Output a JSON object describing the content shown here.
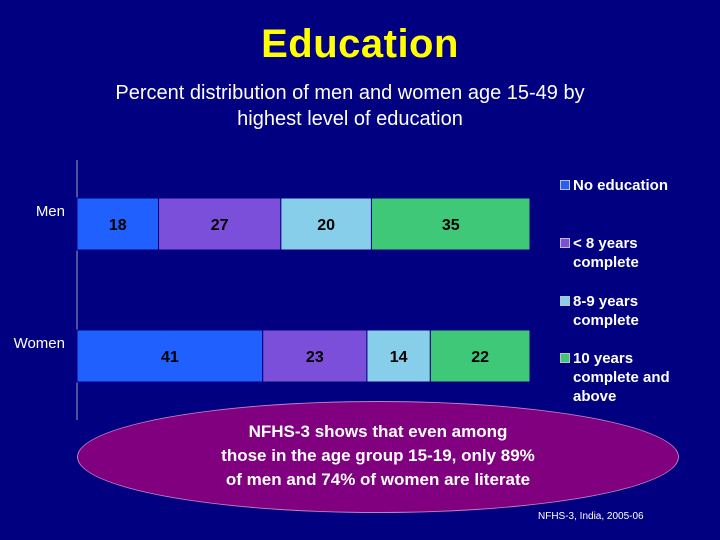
{
  "title": "Education",
  "subtitle_lines": [
    "Percent distribution of men and women age 15-49 by",
    "highest level of education"
  ],
  "chart_data": {
    "type": "bar",
    "orientation": "horizontal",
    "stacked": true,
    "categories": [
      "Men",
      "Women"
    ],
    "series": [
      {
        "name": "No education",
        "values": [
          18,
          41
        ],
        "color": "#2060ff"
      },
      {
        "name": "< 8 years complete",
        "values": [
          27,
          23
        ],
        "color": "#7b4fd9"
      },
      {
        "name": "8-9 years complete",
        "values": [
          20,
          14
        ],
        "color": "#87ceeb"
      },
      {
        "name": "10 years complete and above",
        "values": [
          35,
          22
        ],
        "color": "#3ec878"
      }
    ],
    "xlim": [
      0,
      100
    ],
    "grid": false,
    "legend_position": "right"
  },
  "legend": [
    {
      "lines": [
        "No education"
      ],
      "color": "#2060ff"
    },
    {
      "lines": [
        "< 8 years",
        "complete"
      ],
      "color": "#7b4fd9"
    },
    {
      "lines": [
        "8-9 years",
        "complete"
      ],
      "color": "#87ceeb"
    },
    {
      "lines": [
        "10 years",
        "complete and",
        "above"
      ],
      "color": "#3ec878"
    }
  ],
  "callout_lines": [
    "NFHS-3 shows that even among",
    "those in the age group 15-19, only 89%",
    "of men and 74% of women are literate"
  ],
  "source": "NFHS-3, India, 2005-06",
  "colors": {
    "background": "#000080",
    "title": "#ffff00",
    "callout": "#800080"
  }
}
